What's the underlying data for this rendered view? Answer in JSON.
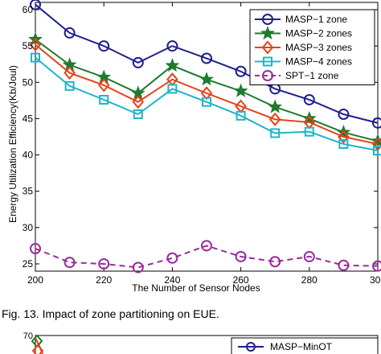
{
  "caption": "Fig. 13.  Impact of zone partitioning on EUE.",
  "chart_data": {
    "type": "line",
    "xlabel": "The Number of Sensor Nodes",
    "ylabel": "Energy Utilization Efficiency(Kb/Joul)",
    "xlim": [
      200,
      300
    ],
    "ylim": [
      24,
      61
    ],
    "xticks": [
      200,
      220,
      240,
      260,
      280,
      300
    ],
    "yticks": [
      25,
      30,
      35,
      40,
      45,
      50,
      55,
      60
    ],
    "x": [
      200,
      210,
      220,
      230,
      240,
      250,
      260,
      270,
      280,
      290,
      300
    ],
    "legend_position": "top-right",
    "series": [
      {
        "name": "MASP−1 zone",
        "color": "#1f1f8f",
        "marker": "circle",
        "dash": "solid",
        "values": [
          60.7,
          56.8,
          55.0,
          52.7,
          55.0,
          53.3,
          51.5,
          49.1,
          47.6,
          45.6,
          44.4
        ]
      },
      {
        "name": "MASP−2 zones",
        "color": "#1f7a2e",
        "marker": "star",
        "dash": "solid",
        "values": [
          55.9,
          52.4,
          50.7,
          48.5,
          52.3,
          50.4,
          48.8,
          46.6,
          45.0,
          43.1,
          41.9
        ]
      },
      {
        "name": "MASP−3 zones",
        "color": "#e4441a",
        "marker": "diamond",
        "dash": "solid",
        "values": [
          55.2,
          51.3,
          49.6,
          47.3,
          50.4,
          48.5,
          46.7,
          44.9,
          44.5,
          42.5,
          41.5
        ]
      },
      {
        "name": "MASP−4 zones",
        "color": "#1fb4c8",
        "marker": "square",
        "dash": "solid",
        "values": [
          53.4,
          49.5,
          47.6,
          45.6,
          49.1,
          47.3,
          45.4,
          43.0,
          43.2,
          41.5,
          40.6
        ]
      },
      {
        "name": "SPT−1 zone",
        "color": "#9b2a9b",
        "marker": "circle",
        "dash": "dashed",
        "values": [
          27.1,
          25.2,
          25.0,
          24.5,
          25.8,
          27.5,
          26.0,
          25.3,
          26.0,
          24.8,
          24.7
        ]
      }
    ]
  },
  "lower_chart": {
    "ytick_top": "70",
    "legend_entry": "MASP−MinOT",
    "series_color": "#1f1f8f"
  }
}
